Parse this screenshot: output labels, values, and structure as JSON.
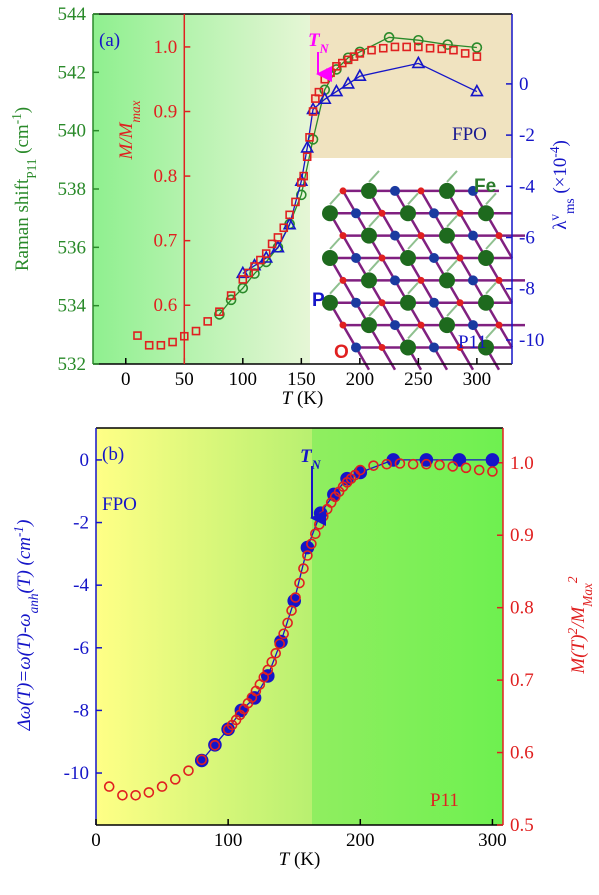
{
  "chart_data": [
    {
      "type": "scatter",
      "panel_label": "(a)",
      "xlabel": [
        "T",
        " (K)"
      ],
      "ylabel": [
        "Raman shift",
        "P11",
        " (cm",
        "-1",
        ")"
      ],
      "y2label": [
        "λ",
        "v",
        "ms",
        " (×10",
        "-4",
        ")"
      ],
      "y3label": [
        "M/M",
        "max"
      ],
      "xlim": [
        -28,
        330
      ],
      "xticks": [
        0,
        50,
        100,
        150,
        200,
        250,
        300
      ],
      "ylim": [
        532,
        544
      ],
      "yticks": [
        532,
        534,
        536,
        538,
        540,
        542,
        544
      ],
      "y2lim": [
        -10.94,
        2.73
      ],
      "y2ticks": [
        0,
        -2,
        -4,
        -6,
        -8,
        -10
      ],
      "y3lim": [
        0.509,
        1.051
      ],
      "y3ticks": [
        0.6,
        0.7,
        0.8,
        0.9,
        {
          "value": 1,
          "label": "1.0"
        }
      ],
      "ycolor": "#2a8a2a",
      "y2color": "#1515c8",
      "y3color": "#e02020",
      "annotations": [
        {
          "text": "T",
          "sub": "N",
          "color": "#ff00ff"
        },
        {
          "text": "FPO",
          "color": "#1a1a90"
        },
        {
          "text": "Fe",
          "color": "#2a7a2a"
        },
        {
          "text": "P",
          "color": "#1515c8"
        },
        {
          "text": "O",
          "color": "#e02020"
        },
        {
          "text": "P11",
          "color": "#1515c8"
        }
      ],
      "series": [
        {
          "axis": "y",
          "color": "#2a8a2a",
          "marker": "circle",
          "filled": false,
          "line": true,
          "x": [
            80,
            90,
            100,
            110,
            120,
            130,
            140,
            150,
            160,
            170,
            180,
            190,
            200,
            225,
            250,
            275,
            300
          ],
          "values": [
            533.7,
            534.2,
            534.6,
            535.1,
            535.5,
            536.0,
            536.8,
            537.8,
            539.7,
            541.4,
            542.1,
            542.5,
            542.7,
            543.2,
            543.1,
            542.95,
            542.85
          ]
        },
        {
          "axis": "y2",
          "color": "#1515c8",
          "marker": "triangle",
          "filled": false,
          "line": true,
          "x": [
            100,
            110,
            120,
            130,
            140,
            150,
            155,
            160,
            170,
            180,
            190,
            200,
            250,
            300
          ],
          "values": [
            -7.4,
            -7.1,
            -6.8,
            -6.4,
            -5.5,
            -3.8,
            -2.5,
            -1.0,
            -0.6,
            -0.3,
            0.0,
            0.3,
            0.8,
            -0.3
          ]
        },
        {
          "axis": "y3",
          "color": "#e02020",
          "marker": "square",
          "filled": false,
          "line": false,
          "x": [
            10,
            20,
            30,
            40,
            50,
            60,
            70,
            80,
            90,
            100,
            105,
            110,
            115,
            120,
            125,
            130,
            135,
            140,
            145,
            150,
            152,
            155,
            157,
            160,
            162,
            165,
            170,
            175,
            180,
            185,
            190,
            195,
            200,
            210,
            220,
            230,
            240,
            250,
            260,
            270,
            280,
            290,
            300
          ],
          "values": [
            0.553,
            0.538,
            0.538,
            0.543,
            0.552,
            0.56,
            0.575,
            0.59,
            0.615,
            0.64,
            0.65,
            0.66,
            0.67,
            0.68,
            0.695,
            0.705,
            0.72,
            0.74,
            0.76,
            0.79,
            0.8,
            0.83,
            0.86,
            0.9,
            0.92,
            0.93,
            0.95,
            0.96,
            0.97,
            0.975,
            0.98,
            0.985,
            0.99,
            0.995,
            0.998,
            1.0,
            1.0,
            1.0,
            0.998,
            0.997,
            0.995,
            0.99,
            0.985
          ]
        }
      ]
    },
    {
      "type": "scatter",
      "panel_label": "(b)",
      "xlabel": [
        "T",
        " (K)"
      ],
      "ylabel": [
        "Δω(T)=ω(T)-ω",
        "anh",
        "(T) (cm",
        "-1",
        ")"
      ],
      "y2label": [
        "M(T)",
        "2",
        "/M",
        "Max",
        "2"
      ],
      "xlim": [
        0,
        308
      ],
      "xticks": [
        0,
        100,
        200,
        300
      ],
      "ylim": [
        -11.66,
        1.02
      ],
      "yticks": [
        0,
        -2,
        -4,
        -6,
        -8,
        -10
      ],
      "y2lim": [
        0.5,
        1.048
      ],
      "y2ticks": [
        0.5,
        0.6,
        0.7,
        0.8,
        0.9,
        {
          "value": 1,
          "label": "1.0"
        }
      ],
      "ycolor": "#1515c8",
      "y2color": "#e02020",
      "annotations": [
        {
          "text": "T",
          "sub": "N",
          "color": "#1515c8"
        },
        {
          "text": "FPO",
          "color": "#1515c8"
        },
        {
          "text": "P11",
          "color": "#e02020"
        }
      ],
      "series": [
        {
          "axis": "y",
          "color": "#1515c8",
          "marker": "circle",
          "filled": true,
          "line": true,
          "x": [
            80,
            90,
            100,
            110,
            120,
            130,
            140,
            150,
            160,
            170,
            180,
            190,
            200,
            225,
            250,
            275,
            300
          ],
          "values": [
            -9.6,
            -9.1,
            -8.6,
            -8.0,
            -7.6,
            -6.9,
            -5.8,
            -4.5,
            -2.8,
            -1.7,
            -1.1,
            -0.6,
            -0.4,
            0.0,
            0.0,
            0.0,
            0.0
          ]
        },
        {
          "axis": "y2",
          "color": "#e02020",
          "marker": "circle",
          "filled": false,
          "line": false,
          "x": [
            10,
            20,
            30,
            40,
            50,
            60,
            70,
            80,
            90,
            100,
            103,
            106,
            109,
            112,
            115,
            118,
            121,
            124,
            127,
            130,
            133,
            136,
            139,
            142,
            145,
            148,
            151,
            154,
            157,
            160,
            163,
            166,
            169,
            172,
            175,
            178,
            181,
            184,
            187,
            190,
            193,
            196,
            200,
            210,
            220,
            230,
            240,
            250,
            260,
            270,
            280,
            290,
            300
          ],
          "values": [
            0.553,
            0.541,
            0.541,
            0.545,
            0.553,
            0.563,
            0.575,
            0.59,
            0.61,
            0.632,
            0.638,
            0.645,
            0.652,
            0.66,
            0.668,
            0.676,
            0.685,
            0.694,
            0.704,
            0.714,
            0.725,
            0.737,
            0.75,
            0.764,
            0.779,
            0.796,
            0.814,
            0.834,
            0.854,
            0.872,
            0.888,
            0.902,
            0.915,
            0.926,
            0.936,
            0.945,
            0.953,
            0.96,
            0.967,
            0.973,
            0.978,
            0.983,
            0.99,
            0.996,
            0.998,
            0.999,
            0.998,
            0.998,
            0.997,
            0.995,
            0.993,
            0.99,
            0.988
          ]
        }
      ]
    }
  ]
}
